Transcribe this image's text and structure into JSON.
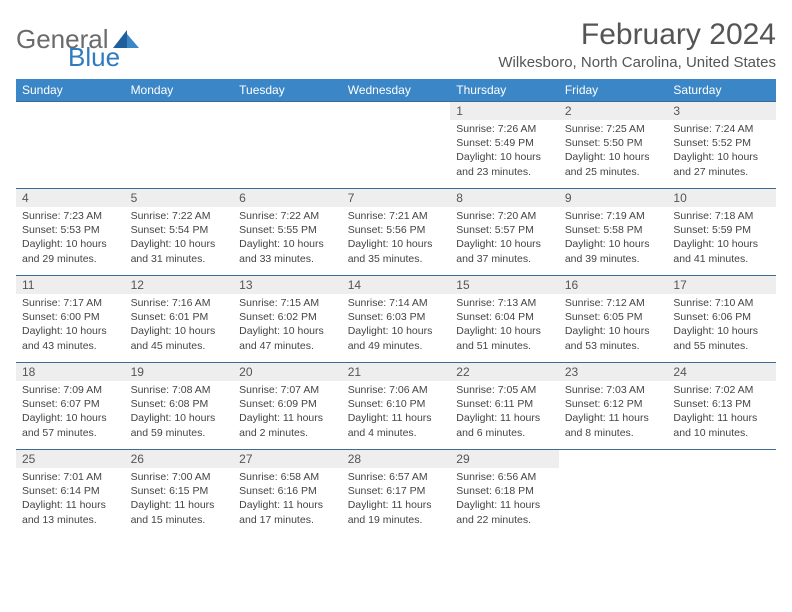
{
  "logo": {
    "general": "General",
    "blue": "Blue"
  },
  "header": {
    "month_title": "February 2024",
    "location": "Wilkesboro, North Carolina, United States"
  },
  "colors": {
    "header_bg": "#3b86c7",
    "header_text": "#ffffff",
    "band_bg": "#eeeeee",
    "text": "#444444",
    "rule": "#3b6a94",
    "logo_gray": "#6b6b6b",
    "logo_blue": "#2f7bc0"
  },
  "day_names": [
    "Sunday",
    "Monday",
    "Tuesday",
    "Wednesday",
    "Thursday",
    "Friday",
    "Saturday"
  ],
  "weeks": [
    [
      {
        "empty": true
      },
      {
        "empty": true
      },
      {
        "empty": true
      },
      {
        "empty": true
      },
      {
        "num": "1",
        "sunrise": "Sunrise: 7:26 AM",
        "sunset": "Sunset: 5:49 PM",
        "daylight": "Daylight: 10 hours and 23 minutes."
      },
      {
        "num": "2",
        "sunrise": "Sunrise: 7:25 AM",
        "sunset": "Sunset: 5:50 PM",
        "daylight": "Daylight: 10 hours and 25 minutes."
      },
      {
        "num": "3",
        "sunrise": "Sunrise: 7:24 AM",
        "sunset": "Sunset: 5:52 PM",
        "daylight": "Daylight: 10 hours and 27 minutes."
      }
    ],
    [
      {
        "num": "4",
        "sunrise": "Sunrise: 7:23 AM",
        "sunset": "Sunset: 5:53 PM",
        "daylight": "Daylight: 10 hours and 29 minutes."
      },
      {
        "num": "5",
        "sunrise": "Sunrise: 7:22 AM",
        "sunset": "Sunset: 5:54 PM",
        "daylight": "Daylight: 10 hours and 31 minutes."
      },
      {
        "num": "6",
        "sunrise": "Sunrise: 7:22 AM",
        "sunset": "Sunset: 5:55 PM",
        "daylight": "Daylight: 10 hours and 33 minutes."
      },
      {
        "num": "7",
        "sunrise": "Sunrise: 7:21 AM",
        "sunset": "Sunset: 5:56 PM",
        "daylight": "Daylight: 10 hours and 35 minutes."
      },
      {
        "num": "8",
        "sunrise": "Sunrise: 7:20 AM",
        "sunset": "Sunset: 5:57 PM",
        "daylight": "Daylight: 10 hours and 37 minutes."
      },
      {
        "num": "9",
        "sunrise": "Sunrise: 7:19 AM",
        "sunset": "Sunset: 5:58 PM",
        "daylight": "Daylight: 10 hours and 39 minutes."
      },
      {
        "num": "10",
        "sunrise": "Sunrise: 7:18 AM",
        "sunset": "Sunset: 5:59 PM",
        "daylight": "Daylight: 10 hours and 41 minutes."
      }
    ],
    [
      {
        "num": "11",
        "sunrise": "Sunrise: 7:17 AM",
        "sunset": "Sunset: 6:00 PM",
        "daylight": "Daylight: 10 hours and 43 minutes."
      },
      {
        "num": "12",
        "sunrise": "Sunrise: 7:16 AM",
        "sunset": "Sunset: 6:01 PM",
        "daylight": "Daylight: 10 hours and 45 minutes."
      },
      {
        "num": "13",
        "sunrise": "Sunrise: 7:15 AM",
        "sunset": "Sunset: 6:02 PM",
        "daylight": "Daylight: 10 hours and 47 minutes."
      },
      {
        "num": "14",
        "sunrise": "Sunrise: 7:14 AM",
        "sunset": "Sunset: 6:03 PM",
        "daylight": "Daylight: 10 hours and 49 minutes."
      },
      {
        "num": "15",
        "sunrise": "Sunrise: 7:13 AM",
        "sunset": "Sunset: 6:04 PM",
        "daylight": "Daylight: 10 hours and 51 minutes."
      },
      {
        "num": "16",
        "sunrise": "Sunrise: 7:12 AM",
        "sunset": "Sunset: 6:05 PM",
        "daylight": "Daylight: 10 hours and 53 minutes."
      },
      {
        "num": "17",
        "sunrise": "Sunrise: 7:10 AM",
        "sunset": "Sunset: 6:06 PM",
        "daylight": "Daylight: 10 hours and 55 minutes."
      }
    ],
    [
      {
        "num": "18",
        "sunrise": "Sunrise: 7:09 AM",
        "sunset": "Sunset: 6:07 PM",
        "daylight": "Daylight: 10 hours and 57 minutes."
      },
      {
        "num": "19",
        "sunrise": "Sunrise: 7:08 AM",
        "sunset": "Sunset: 6:08 PM",
        "daylight": "Daylight: 10 hours and 59 minutes."
      },
      {
        "num": "20",
        "sunrise": "Sunrise: 7:07 AM",
        "sunset": "Sunset: 6:09 PM",
        "daylight": "Daylight: 11 hours and 2 minutes."
      },
      {
        "num": "21",
        "sunrise": "Sunrise: 7:06 AM",
        "sunset": "Sunset: 6:10 PM",
        "daylight": "Daylight: 11 hours and 4 minutes."
      },
      {
        "num": "22",
        "sunrise": "Sunrise: 7:05 AM",
        "sunset": "Sunset: 6:11 PM",
        "daylight": "Daylight: 11 hours and 6 minutes."
      },
      {
        "num": "23",
        "sunrise": "Sunrise: 7:03 AM",
        "sunset": "Sunset: 6:12 PM",
        "daylight": "Daylight: 11 hours and 8 minutes."
      },
      {
        "num": "24",
        "sunrise": "Sunrise: 7:02 AM",
        "sunset": "Sunset: 6:13 PM",
        "daylight": "Daylight: 11 hours and 10 minutes."
      }
    ],
    [
      {
        "num": "25",
        "sunrise": "Sunrise: 7:01 AM",
        "sunset": "Sunset: 6:14 PM",
        "daylight": "Daylight: 11 hours and 13 minutes."
      },
      {
        "num": "26",
        "sunrise": "Sunrise: 7:00 AM",
        "sunset": "Sunset: 6:15 PM",
        "daylight": "Daylight: 11 hours and 15 minutes."
      },
      {
        "num": "27",
        "sunrise": "Sunrise: 6:58 AM",
        "sunset": "Sunset: 6:16 PM",
        "daylight": "Daylight: 11 hours and 17 minutes."
      },
      {
        "num": "28",
        "sunrise": "Sunrise: 6:57 AM",
        "sunset": "Sunset: 6:17 PM",
        "daylight": "Daylight: 11 hours and 19 minutes."
      },
      {
        "num": "29",
        "sunrise": "Sunrise: 6:56 AM",
        "sunset": "Sunset: 6:18 PM",
        "daylight": "Daylight: 11 hours and 22 minutes."
      },
      {
        "empty": true
      },
      {
        "empty": true
      }
    ]
  ]
}
